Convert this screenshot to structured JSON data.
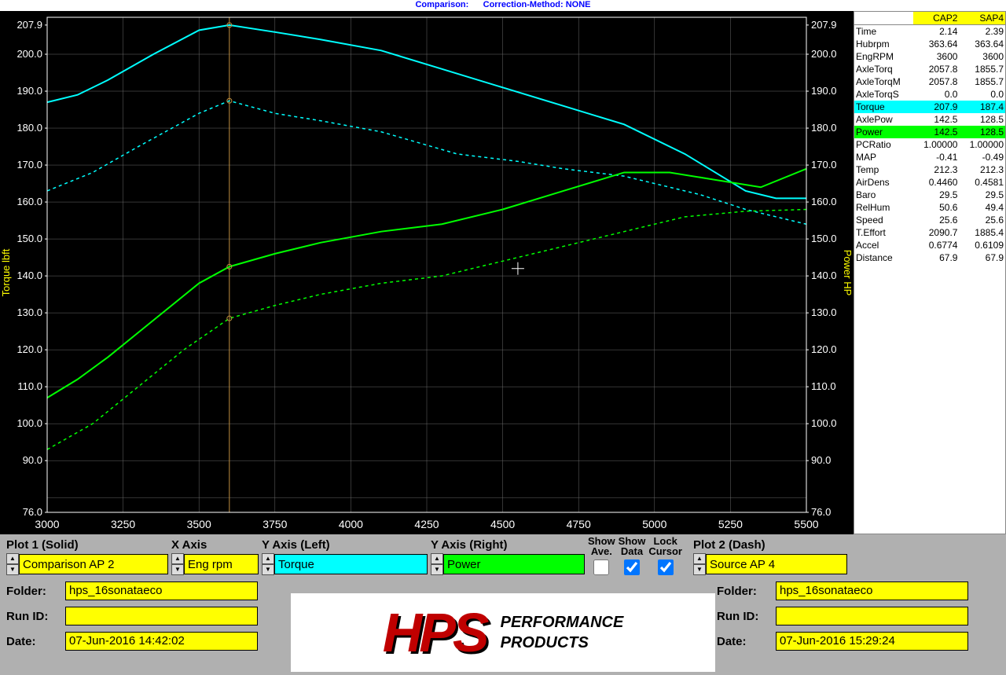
{
  "banner": {
    "left": "Comparison:",
    "right": "Correction-Method: NONE"
  },
  "chart": {
    "bg": "#000000",
    "grid_color": "#6a6a6a",
    "axis_color": "#ffff00",
    "marker_color": "#c09040",
    "x_label": "",
    "yl_label": "Torque lbft",
    "yr_label": "Power HP",
    "xlim": [
      3000,
      5500
    ],
    "xtick_step": 250,
    "ylim": [
      76.0,
      210.0
    ],
    "yticks": [
      76.0,
      90.0,
      100.0,
      110.0,
      120.0,
      130.0,
      140.0,
      150.0,
      160.0,
      170.0,
      180.0,
      190.0,
      200.0,
      207.9
    ],
    "cursor_x": 3600,
    "series": [
      {
        "name": "torque_solid",
        "color": "#00ffff",
        "dash": false,
        "width": 2,
        "pts": [
          [
            3000,
            187
          ],
          [
            3100,
            189
          ],
          [
            3200,
            193
          ],
          [
            3350,
            200
          ],
          [
            3500,
            206.5
          ],
          [
            3600,
            207.9
          ],
          [
            3750,
            206
          ],
          [
            3900,
            204
          ],
          [
            4100,
            201
          ],
          [
            4300,
            196
          ],
          [
            4500,
            191
          ],
          [
            4700,
            186
          ],
          [
            4900,
            181
          ],
          [
            5100,
            173
          ],
          [
            5300,
            163
          ],
          [
            5400,
            161
          ],
          [
            5500,
            161
          ]
        ]
      },
      {
        "name": "torque_dash",
        "color": "#00ffff",
        "dash": true,
        "width": 1.5,
        "pts": [
          [
            3000,
            163
          ],
          [
            3150,
            168
          ],
          [
            3300,
            175
          ],
          [
            3500,
            184
          ],
          [
            3600,
            187.4
          ],
          [
            3750,
            184
          ],
          [
            3900,
            182
          ],
          [
            4100,
            179
          ],
          [
            4350,
            173
          ],
          [
            4550,
            171
          ],
          [
            4700,
            169
          ],
          [
            4900,
            167
          ],
          [
            5150,
            162
          ],
          [
            5300,
            158
          ],
          [
            5500,
            154
          ]
        ]
      },
      {
        "name": "power_solid",
        "color": "#00ff00",
        "dash": false,
        "width": 2,
        "pts": [
          [
            3000,
            107
          ],
          [
            3100,
            112
          ],
          [
            3200,
            118
          ],
          [
            3350,
            128
          ],
          [
            3500,
            138
          ],
          [
            3600,
            142.5
          ],
          [
            3750,
            146
          ],
          [
            3900,
            149
          ],
          [
            4100,
            152
          ],
          [
            4300,
            154
          ],
          [
            4500,
            158
          ],
          [
            4700,
            163
          ],
          [
            4900,
            168
          ],
          [
            5050,
            168
          ],
          [
            5200,
            166
          ],
          [
            5350,
            164
          ],
          [
            5500,
            169
          ]
        ]
      },
      {
        "name": "power_dash",
        "color": "#00ff00",
        "dash": true,
        "width": 1.5,
        "pts": [
          [
            3000,
            93
          ],
          [
            3150,
            100
          ],
          [
            3300,
            110
          ],
          [
            3450,
            120
          ],
          [
            3600,
            128.5
          ],
          [
            3750,
            132
          ],
          [
            3900,
            135
          ],
          [
            4100,
            138
          ],
          [
            4300,
            140
          ],
          [
            4500,
            144
          ],
          [
            4700,
            148
          ],
          [
            4900,
            152
          ],
          [
            5100,
            156
          ],
          [
            5300,
            157.5
          ],
          [
            5500,
            158
          ]
        ]
      }
    ]
  },
  "data_table": {
    "headers": [
      "",
      "CAP2",
      "SAP4"
    ],
    "rows": [
      {
        "label": "Time",
        "v": [
          "2.14",
          "2.39"
        ]
      },
      {
        "label": "Hubrpm",
        "v": [
          "363.64",
          "363.64"
        ]
      },
      {
        "label": "EngRPM",
        "v": [
          "3600",
          "3600"
        ]
      },
      {
        "label": "AxleTorq",
        "v": [
          "2057.8",
          "1855.7"
        ]
      },
      {
        "label": "AxleTorqM",
        "v": [
          "2057.8",
          "1855.7"
        ]
      },
      {
        "label": "AxleTorqS",
        "v": [
          "0.0",
          "0.0"
        ]
      },
      {
        "label": "Torque",
        "v": [
          "207.9",
          "187.4"
        ],
        "hl": "cy"
      },
      {
        "label": "AxlePow",
        "v": [
          "142.5",
          "128.5"
        ]
      },
      {
        "label": "Power",
        "v": [
          "142.5",
          "128.5"
        ],
        "hl": "gr"
      },
      {
        "label": "PCRatio",
        "v": [
          "1.00000",
          "1.00000"
        ]
      },
      {
        "label": "MAP",
        "v": [
          "-0.41",
          "-0.49"
        ]
      },
      {
        "label": "Temp",
        "v": [
          "212.3",
          "212.3"
        ]
      },
      {
        "label": "AirDens",
        "v": [
          "0.4460",
          "0.4581"
        ]
      },
      {
        "label": "Baro",
        "v": [
          "29.5",
          "29.5"
        ]
      },
      {
        "label": "RelHum",
        "v": [
          "50.6",
          "49.4"
        ]
      },
      {
        "label": "Speed",
        "v": [
          "25.6",
          "25.6"
        ]
      },
      {
        "label": "T.Effort",
        "v": [
          "2090.7",
          "1885.4"
        ]
      },
      {
        "label": "Accel",
        "v": [
          "0.6774",
          "0.6109"
        ]
      },
      {
        "label": "Distance",
        "v": [
          "67.9",
          "67.9"
        ]
      }
    ]
  },
  "controls": {
    "plot1_hdr": "Plot 1 (Solid)",
    "plot1_val": "Comparison AP 2",
    "xaxis_hdr": "X Axis",
    "xaxis_val": "Eng rpm",
    "yl_hdr": "Y Axis (Left)",
    "yl_val": "Torque",
    "yr_hdr": "Y Axis (Right)",
    "yr_val": "Power",
    "show_ave": "Show\nAve.",
    "show_data": "Show\nData",
    "lock_cursor": "Lock\nCursor",
    "plot2_hdr": "Plot 2 (Dash)",
    "plot2_val": "Source AP 4",
    "show_ave_checked": false,
    "show_data_checked": true,
    "lock_cursor_checked": true
  },
  "info_left": {
    "folder_lbl": "Folder:",
    "folder_val": "hps_16sonataeco",
    "runid_lbl": "Run ID:",
    "runid_val": "",
    "date_lbl": "Date:",
    "date_val": "07-Jun-2016  14:42:02"
  },
  "info_right": {
    "folder_lbl": "Folder:",
    "folder_val": "hps_16sonataeco",
    "runid_lbl": "Run ID:",
    "runid_val": "",
    "date_lbl": "Date:",
    "date_val": "07-Jun-2016  15:29:24"
  },
  "logo": {
    "brand": "HPS",
    "line1": "PERFORMANCE",
    "line2": "PRODUCTS"
  }
}
